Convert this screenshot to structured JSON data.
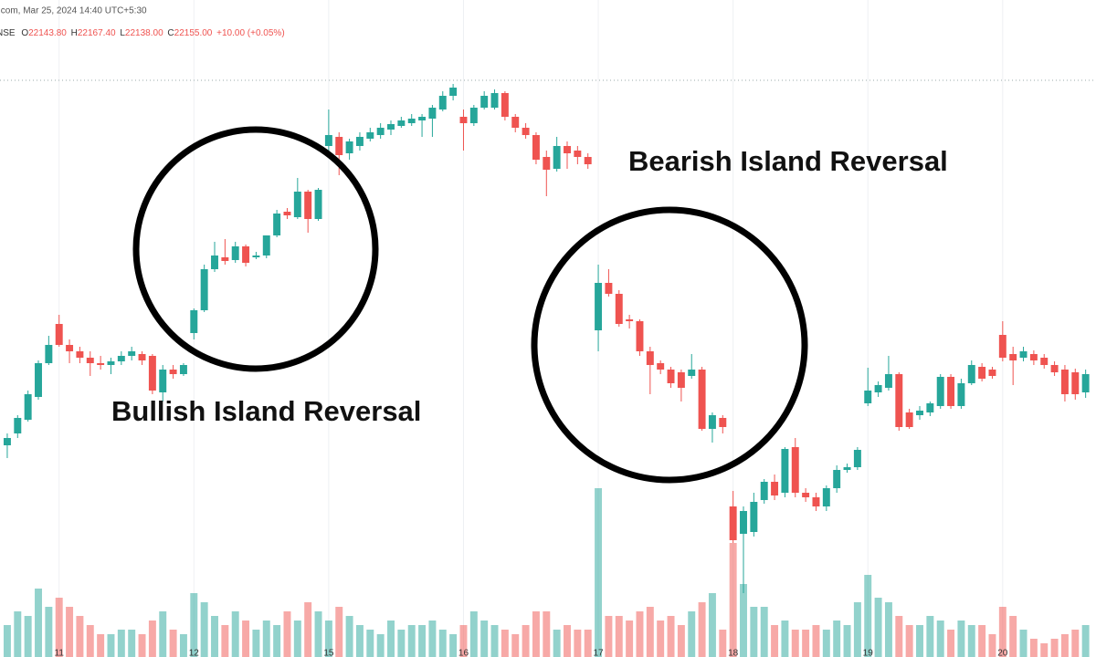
{
  "header": {
    "source": ".com, Mar 25, 2024 14:40 UTC+5:30",
    "symbol": "NSE",
    "ohlc": [
      {
        "label": "O",
        "value": "22143.80"
      },
      {
        "label": "H",
        "value": "22167.40"
      },
      {
        "label": "L",
        "value": "22138.00"
      },
      {
        "label": "C",
        "value": "22155.00"
      }
    ],
    "change": "+10.00 (+0.05%)"
  },
  "chart_data": {
    "type": "candlestick",
    "annotations": [
      "Bullish Island Reversal",
      "Bearish Island Reversal"
    ],
    "up_color": "#26a69a",
    "down_color": "#ef5350",
    "ylim": [
      21260,
      22700
    ],
    "vlim": [
      0,
      1440
    ],
    "categories": [
      null,
      null,
      null,
      null,
      null,
      "11",
      null,
      null,
      null,
      null,
      null,
      null,
      null,
      null,
      null,
      null,
      null,
      null,
      "12",
      null,
      null,
      null,
      null,
      null,
      null,
      null,
      null,
      null,
      null,
      null,
      null,
      "15",
      null,
      null,
      null,
      null,
      null,
      null,
      null,
      null,
      null,
      null,
      null,
      null,
      "16",
      null,
      null,
      null,
      null,
      null,
      null,
      null,
      null,
      null,
      null,
      null,
      null,
      "17",
      null,
      null,
      null,
      null,
      null,
      null,
      null,
      null,
      null,
      null,
      null,
      null,
      "18",
      null,
      null,
      null,
      null,
      null,
      null,
      null,
      null,
      null,
      null,
      null,
      null,
      "19",
      null,
      null,
      null,
      null,
      null,
      null,
      null,
      null,
      null,
      null,
      null,
      null,
      "20",
      null,
      null,
      null,
      null,
      null,
      null,
      null,
      null
    ],
    "open": [
      21724,
      21750,
      21780,
      21830,
      21904,
      21990,
      21944,
      21930,
      21916,
      21904,
      21900,
      21908,
      21920,
      21924,
      21920,
      21840,
      21890,
      21880,
      21970,
      22020,
      22110,
      22136,
      22130,
      22160,
      22136,
      22140,
      22184,
      22236,
      22224,
      22280,
      22220,
      22380,
      22400,
      22364,
      22380,
      22396,
      22404,
      22416,
      22424,
      22430,
      22436,
      22440,
      22460,
      22490,
      22444,
      22430,
      22464,
      22464,
      22496,
      22444,
      22420,
      22404,
      22356,
      22330,
      22380,
      22370,
      22356,
      21976,
      22080,
      22056,
      22000,
      21996,
      21930,
      21904,
      21890,
      21884,
      21876,
      21890,
      21760,
      21784,
      21590,
      21530,
      21534,
      21604,
      21644,
      21620,
      21720,
      21620,
      21610,
      21590,
      21630,
      21670,
      21676,
      21816,
      21840,
      21850,
      21880,
      21796,
      21790,
      21796,
      21810,
      21874,
      21810,
      21860,
      21896,
      21890,
      21966,
      21924,
      21916,
      21924,
      21916,
      21900,
      21890,
      21884,
      21840
    ],
    "high": [
      21750,
      21790,
      21844,
      21910,
      21964,
      22010,
      21956,
      21940,
      21930,
      21920,
      21916,
      21930,
      21940,
      21930,
      21924,
      21900,
      21900,
      21904,
      22024,
      22120,
      22170,
      22176,
      22170,
      22164,
      22148,
      22184,
      22240,
      22244,
      22310,
      22284,
      22288,
      22460,
      22410,
      22396,
      22410,
      22420,
      22430,
      22436,
      22444,
      22450,
      22450,
      22470,
      22500,
      22516,
      22460,
      22470,
      22500,
      22504,
      22500,
      22450,
      22430,
      22410,
      22370,
      22400,
      22390,
      22380,
      22364,
      22120,
      22110,
      22064,
      22010,
      22000,
      21940,
      21910,
      21896,
      21890,
      21924,
      21896,
      21796,
      21790,
      21624,
      21590,
      21620,
      21650,
      21660,
      21720,
      21740,
      21630,
      21620,
      21636,
      21680,
      21684,
      21720,
      21894,
      21864,
      21920,
      21884,
      21804,
      21810,
      21820,
      21880,
      21880,
      21870,
      21910,
      21904,
      21896,
      21996,
      21940,
      21940,
      21932,
      21924,
      21908,
      21900,
      21892,
      21890
    ],
    "low": [
      21696,
      21740,
      21776,
      21824,
      21900,
      21940,
      21904,
      21904,
      21876,
      21890,
      21880,
      21900,
      21910,
      21900,
      21836,
      21820,
      21870,
      21876,
      21956,
      22016,
      22104,
      22120,
      22124,
      22116,
      22132,
      22134,
      22180,
      22220,
      22220,
      22190,
      22216,
      22360,
      22316,
      22350,
      22370,
      22390,
      22396,
      22404,
      22420,
      22424,
      22400,
      22400,
      22456,
      22480,
      22370,
      22424,
      22460,
      22460,
      22436,
      22410,
      22396,
      22340,
      22270,
      22324,
      22330,
      22340,
      22330,
      21930,
      22050,
      21984,
      21980,
      21920,
      21836,
      21880,
      21850,
      21820,
      21870,
      21756,
      21730,
      21750,
      21510,
      21400,
      21524,
      21596,
      21604,
      21610,
      21610,
      21600,
      21580,
      21580,
      21620,
      21664,
      21670,
      21810,
      21830,
      21844,
      21756,
      21760,
      21780,
      21788,
      21804,
      21804,
      21804,
      21856,
      21864,
      21870,
      21908,
      21856,
      21908,
      21900,
      21892,
      21876,
      21820,
      21824,
      21828
    ],
    "close": [
      21740,
      21784,
      21836,
      21904,
      21944,
      21944,
      21930,
      21916,
      21904,
      21900,
      21908,
      21920,
      21930,
      21910,
      21844,
      21890,
      21880,
      21900,
      22020,
      22110,
      22140,
      22128,
      22160,
      22124,
      22140,
      22184,
      22232,
      22228,
      22280,
      22220,
      22284,
      22404,
      22360,
      22390,
      22400,
      22410,
      22420,
      22428,
      22436,
      22440,
      22444,
      22464,
      22490,
      22508,
      22430,
      22464,
      22490,
      22496,
      22444,
      22420,
      22404,
      22350,
      22328,
      22380,
      22364,
      22356,
      22340,
      22080,
      22056,
      21990,
      21996,
      21930,
      21900,
      21890,
      21860,
      21850,
      21890,
      21760,
      21790,
      21764,
      21516,
      21580,
      21600,
      21644,
      21614,
      21716,
      21620,
      21610,
      21590,
      21630,
      21670,
      21676,
      21714,
      21844,
      21856,
      21880,
      21764,
      21764,
      21800,
      21816,
      21874,
      21810,
      21860,
      21900,
      21870,
      21876,
      21916,
      21910,
      21930,
      21910,
      21900,
      21884,
      21836,
      21836,
      21880
    ],
    "volume": [
      70,
      100,
      90,
      150,
      110,
      130,
      110,
      90,
      70,
      50,
      50,
      60,
      60,
      50,
      80,
      100,
      60,
      50,
      140,
      120,
      90,
      70,
      100,
      80,
      60,
      80,
      70,
      100,
      80,
      120,
      100,
      80,
      110,
      90,
      70,
      60,
      50,
      80,
      60,
      70,
      70,
      80,
      60,
      50,
      70,
      100,
      80,
      70,
      60,
      50,
      70,
      100,
      100,
      60,
      70,
      60,
      60,
      370,
      90,
      90,
      80,
      100,
      110,
      80,
      90,
      70,
      100,
      120,
      140,
      60,
      250,
      160,
      110,
      110,
      70,
      80,
      60,
      60,
      70,
      60,
      80,
      70,
      120,
      180,
      130,
      120,
      90,
      70,
      70,
      90,
      80,
      60,
      80,
      70,
      70,
      50,
      110,
      90,
      60,
      40,
      30,
      40,
      50,
      60,
      70
    ]
  }
}
